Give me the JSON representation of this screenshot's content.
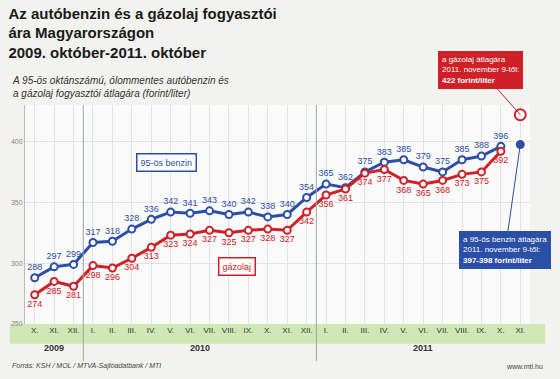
{
  "chart_data": {
    "type": "line",
    "title": [
      "Az autóbenzin és a gázolaj fogyasztói",
      "ára Magyarországon",
      "2009. október-2011. október"
    ],
    "subtitle": [
      "A 95-ös oktánszámú, ólommentes autóbenzin és",
      "a gázolaj fogyasztói átlagára (forint/liter)"
    ],
    "categories": [
      "X.",
      "XI.",
      "XII.",
      "I.",
      "II.",
      "III.",
      "IV.",
      "V.",
      "VI.",
      "VII.",
      "VIII.",
      "IX.",
      "X.",
      "XI.",
      "XII.",
      "I.",
      "II.",
      "III.",
      "IV.",
      "V.",
      "VI.",
      "VII.",
      "VIII.",
      "IX.",
      "X.",
      "XI."
    ],
    "groups": [
      {
        "label": "2009",
        "first": 0,
        "last": 2
      },
      {
        "label": "2010",
        "first": 3,
        "last": 14
      },
      {
        "label": "2011",
        "first": 15,
        "last": 25
      }
    ],
    "series": [
      {
        "name": "95-ös benzin",
        "color": "#2b4ea6",
        "marker": "circle",
        "values": [
          288,
          297,
          299,
          317,
          318,
          328,
          336,
          342,
          341,
          343,
          340,
          342,
          338,
          340,
          354,
          365,
          362,
          375,
          383,
          385,
          379,
          375,
          385,
          388,
          396,
          null
        ]
      },
      {
        "name": "gázolaj",
        "color": "#cf2027",
        "marker": "circle",
        "values": [
          274,
          285,
          281,
          298,
          296,
          304,
          313,
          323,
          324,
          327,
          325,
          327,
          328,
          327,
          342,
          356,
          361,
          374,
          377,
          368,
          365,
          368,
          373,
          375,
          392,
          null
        ]
      }
    ],
    "annotations": [
      {
        "text": [
          "a gázolaj átlagára",
          "2011. november 9-től:",
          "422 forint/liter"
        ],
        "index": 25,
        "value": 422,
        "color": "#cf2027"
      },
      {
        "text": [
          "a 95-ös benzin átlagára",
          "2011. november 9-től:",
          "397-398 forint/liter"
        ],
        "index": 25,
        "value": 397.5,
        "color": "#2b4ea6"
      }
    ],
    "ylim": [
      250,
      430
    ],
    "yticks": [
      250,
      300,
      350,
      400
    ],
    "grid": true,
    "data_labels": true,
    "source": "Forrás: KSH / MOL / MTVA-Sajtóadatbank / MTI",
    "credit": "www.mti.hu"
  }
}
